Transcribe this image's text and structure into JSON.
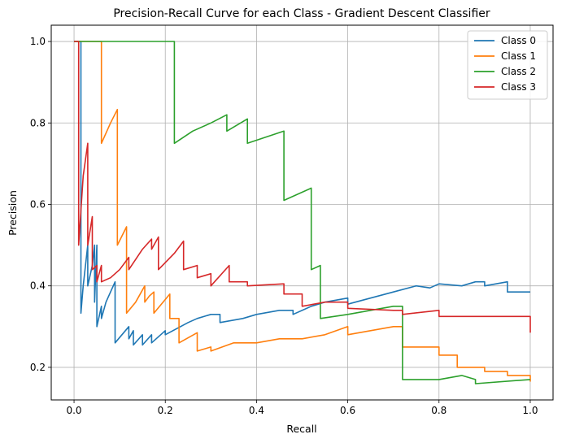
{
  "chart_data": {
    "type": "line",
    "title": "Precision-Recall Curve for each Class - Gradient Descent Classifier",
    "xlabel": "Recall",
    "ylabel": "Precision",
    "xlim": [
      -0.05,
      1.05
    ],
    "ylim": [
      0.12,
      1.04
    ],
    "xticks": [
      0.0,
      0.2,
      0.4,
      0.6,
      0.8,
      1.0
    ],
    "xtick_labels": [
      "0.0",
      "0.2",
      "0.4",
      "0.6",
      "0.8",
      "1.0"
    ],
    "yticks": [
      0.2,
      0.4,
      0.6,
      0.8,
      1.0
    ],
    "ytick_labels": [
      "0.2",
      "0.4",
      "0.6",
      "0.8",
      "1.0"
    ],
    "grid": true,
    "legend_position": "top-right",
    "series": [
      {
        "name": "Class 0",
        "color": "#1f77b4",
        "points": [
          [
            0.0,
            1.0
          ],
          [
            0.015,
            1.0
          ],
          [
            0.015,
            0.333
          ],
          [
            0.02,
            0.4
          ],
          [
            0.03,
            0.5
          ],
          [
            0.03,
            0.4
          ],
          [
            0.04,
            0.45
          ],
          [
            0.045,
            0.5
          ],
          [
            0.045,
            0.36
          ],
          [
            0.05,
            0.5
          ],
          [
            0.05,
            0.3
          ],
          [
            0.06,
            0.35
          ],
          [
            0.06,
            0.32
          ],
          [
            0.07,
            0.36
          ],
          [
            0.09,
            0.41
          ],
          [
            0.09,
            0.26
          ],
          [
            0.12,
            0.3
          ],
          [
            0.12,
            0.27
          ],
          [
            0.13,
            0.29
          ],
          [
            0.13,
            0.255
          ],
          [
            0.15,
            0.28
          ],
          [
            0.15,
            0.255
          ],
          [
            0.17,
            0.28
          ],
          [
            0.17,
            0.26
          ],
          [
            0.2,
            0.29
          ],
          [
            0.2,
            0.28
          ],
          [
            0.25,
            0.31
          ],
          [
            0.27,
            0.32
          ],
          [
            0.3,
            0.33
          ],
          [
            0.32,
            0.33
          ],
          [
            0.32,
            0.31
          ],
          [
            0.37,
            0.32
          ],
          [
            0.4,
            0.33
          ],
          [
            0.45,
            0.34
          ],
          [
            0.48,
            0.34
          ],
          [
            0.48,
            0.33
          ],
          [
            0.52,
            0.35
          ],
          [
            0.55,
            0.36
          ],
          [
            0.6,
            0.37
          ],
          [
            0.6,
            0.355
          ],
          [
            0.65,
            0.37
          ],
          [
            0.7,
            0.385
          ],
          [
            0.75,
            0.4
          ],
          [
            0.78,
            0.395
          ],
          [
            0.8,
            0.405
          ],
          [
            0.85,
            0.4
          ],
          [
            0.88,
            0.41
          ],
          [
            0.9,
            0.41
          ],
          [
            0.9,
            0.4
          ],
          [
            0.95,
            0.41
          ],
          [
            0.95,
            0.385
          ],
          [
            1.0,
            0.385
          ]
        ]
      },
      {
        "name": "Class 1",
        "color": "#ff7f0e",
        "points": [
          [
            0.0,
            1.0
          ],
          [
            0.06,
            1.0
          ],
          [
            0.06,
            0.75
          ],
          [
            0.08,
            0.8
          ],
          [
            0.095,
            0.833
          ],
          [
            0.095,
            0.5
          ],
          [
            0.115,
            0.545
          ],
          [
            0.115,
            0.333
          ],
          [
            0.135,
            0.36
          ],
          [
            0.155,
            0.4
          ],
          [
            0.155,
            0.36
          ],
          [
            0.165,
            0.375
          ],
          [
            0.175,
            0.385
          ],
          [
            0.175,
            0.333
          ],
          [
            0.21,
            0.38
          ],
          [
            0.21,
            0.32
          ],
          [
            0.23,
            0.32
          ],
          [
            0.23,
            0.26
          ],
          [
            0.27,
            0.285
          ],
          [
            0.27,
            0.24
          ],
          [
            0.3,
            0.25
          ],
          [
            0.3,
            0.24
          ],
          [
            0.35,
            0.26
          ],
          [
            0.4,
            0.26
          ],
          [
            0.45,
            0.27
          ],
          [
            0.5,
            0.27
          ],
          [
            0.55,
            0.28
          ],
          [
            0.6,
            0.3
          ],
          [
            0.6,
            0.28
          ],
          [
            0.65,
            0.29
          ],
          [
            0.7,
            0.3
          ],
          [
            0.72,
            0.3
          ],
          [
            0.72,
            0.28
          ],
          [
            0.72,
            0.25
          ],
          [
            0.8,
            0.25
          ],
          [
            0.8,
            0.23
          ],
          [
            0.84,
            0.23
          ],
          [
            0.84,
            0.2
          ],
          [
            0.9,
            0.2
          ],
          [
            0.9,
            0.19
          ],
          [
            0.95,
            0.19
          ],
          [
            0.95,
            0.18
          ],
          [
            1.0,
            0.18
          ],
          [
            1.0,
            0.165
          ]
        ]
      },
      {
        "name": "Class 2",
        "color": "#2ca02c",
        "points": [
          [
            0.0,
            1.0
          ],
          [
            0.22,
            1.0
          ],
          [
            0.22,
            0.75
          ],
          [
            0.26,
            0.78
          ],
          [
            0.3,
            0.8
          ],
          [
            0.335,
            0.82
          ],
          [
            0.335,
            0.78
          ],
          [
            0.38,
            0.81
          ],
          [
            0.38,
            0.75
          ],
          [
            0.46,
            0.78
          ],
          [
            0.46,
            0.61
          ],
          [
            0.52,
            0.64
          ],
          [
            0.52,
            0.44
          ],
          [
            0.54,
            0.45
          ],
          [
            0.54,
            0.32
          ],
          [
            0.6,
            0.33
          ],
          [
            0.65,
            0.34
          ],
          [
            0.7,
            0.35
          ],
          [
            0.72,
            0.35
          ],
          [
            0.72,
            0.17
          ],
          [
            0.8,
            0.17
          ],
          [
            0.85,
            0.18
          ],
          [
            0.88,
            0.17
          ],
          [
            0.88,
            0.16
          ],
          [
            1.0,
            0.17
          ]
        ]
      },
      {
        "name": "Class 3",
        "color": "#d62728",
        "points": [
          [
            0.0,
            1.0
          ],
          [
            0.01,
            1.0
          ],
          [
            0.01,
            0.5
          ],
          [
            0.02,
            0.67
          ],
          [
            0.03,
            0.75
          ],
          [
            0.03,
            0.5
          ],
          [
            0.04,
            0.57
          ],
          [
            0.04,
            0.44
          ],
          [
            0.05,
            0.45
          ],
          [
            0.05,
            0.41
          ],
          [
            0.06,
            0.45
          ],
          [
            0.06,
            0.41
          ],
          [
            0.08,
            0.42
          ],
          [
            0.1,
            0.44
          ],
          [
            0.12,
            0.47
          ],
          [
            0.12,
            0.44
          ],
          [
            0.15,
            0.49
          ],
          [
            0.17,
            0.515
          ],
          [
            0.17,
            0.49
          ],
          [
            0.185,
            0.52
          ],
          [
            0.185,
            0.44
          ],
          [
            0.22,
            0.48
          ],
          [
            0.24,
            0.51
          ],
          [
            0.24,
            0.44
          ],
          [
            0.27,
            0.45
          ],
          [
            0.27,
            0.42
          ],
          [
            0.3,
            0.43
          ],
          [
            0.3,
            0.4
          ],
          [
            0.34,
            0.45
          ],
          [
            0.34,
            0.41
          ],
          [
            0.38,
            0.41
          ],
          [
            0.38,
            0.4
          ],
          [
            0.46,
            0.405
          ],
          [
            0.46,
            0.38
          ],
          [
            0.5,
            0.38
          ],
          [
            0.5,
            0.35
          ],
          [
            0.55,
            0.36
          ],
          [
            0.6,
            0.36
          ],
          [
            0.6,
            0.345
          ],
          [
            0.7,
            0.34
          ],
          [
            0.72,
            0.34
          ],
          [
            0.72,
            0.33
          ],
          [
            0.8,
            0.34
          ],
          [
            0.8,
            0.325
          ],
          [
            1.0,
            0.325
          ],
          [
            1.0,
            0.285
          ]
        ]
      }
    ]
  }
}
